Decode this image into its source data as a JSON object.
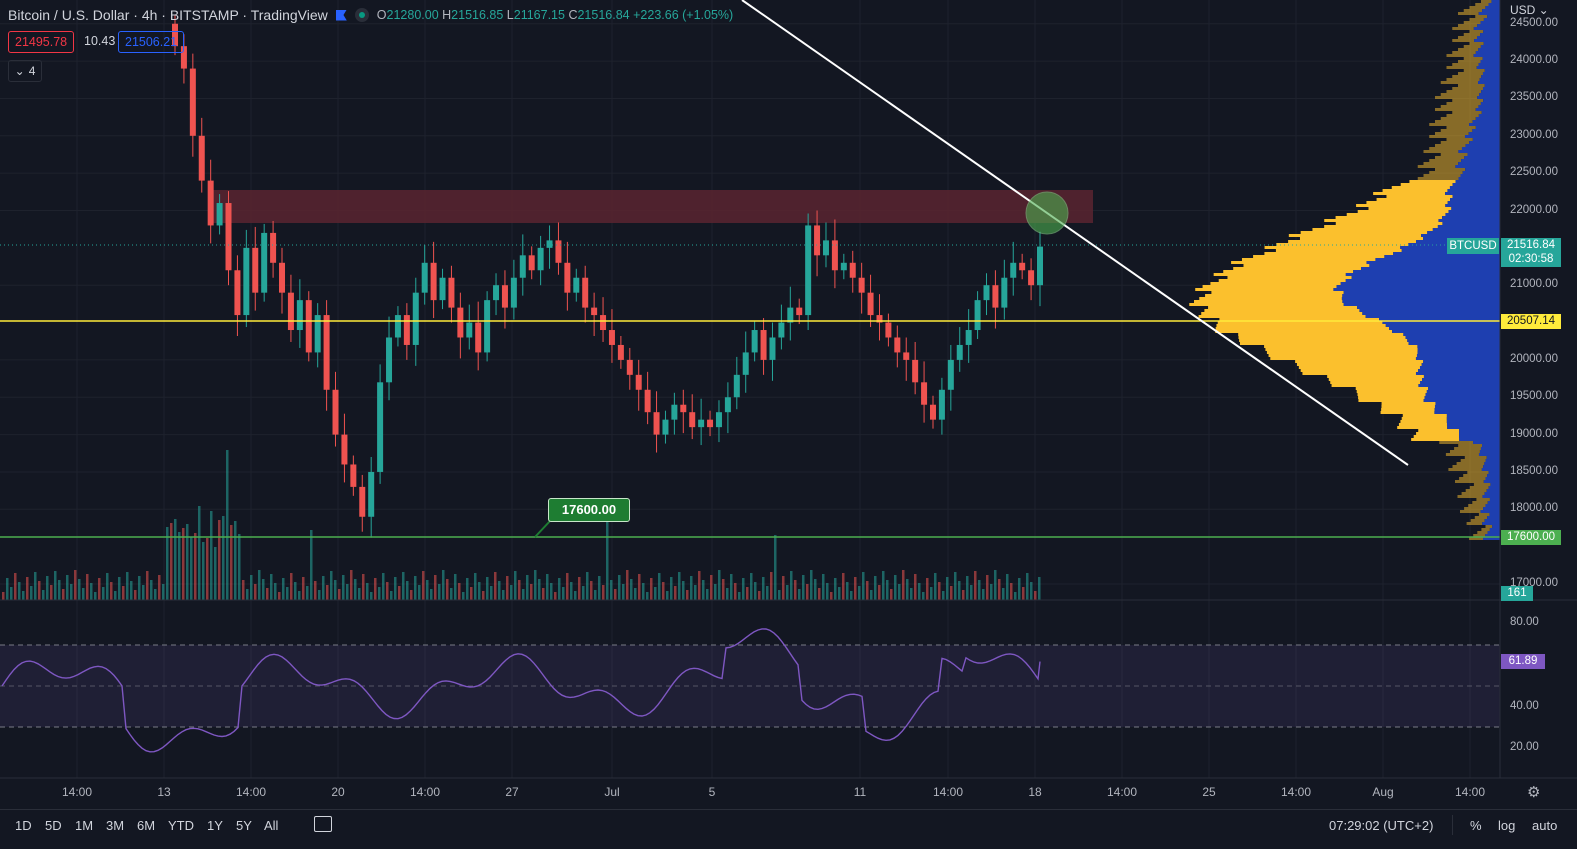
{
  "legend": {
    "title": "Bitcoin / U.S. Dollar · 4h · BITSTAMP · TradingView",
    "ohlc": {
      "o_label": "O",
      "o": "21280.00",
      "h_label": "H",
      "h": "21516.85",
      "l_label": "L",
      "l": "21167.15",
      "c_label": "C",
      "c": "21516.84",
      "change": "+223.66 (+1.05%)"
    },
    "sell": "21495.78",
    "spread": "10.43",
    "buy": "21506.21",
    "indicators_count": "4",
    "collapse_icon": "chevron-down-icon"
  },
  "price_axis": {
    "currency": "USD",
    "labels": [
      "24500.00",
      "24000.00",
      "23500.00",
      "23000.00",
      "22500.00",
      "22000.00",
      "21000.00",
      "20000.00",
      "19500.00",
      "19000.00",
      "18500.00",
      "18000.00",
      "17000.00"
    ],
    "symbol_tag": "BTCUSD",
    "last_price": "21516.84",
    "countdown": "02:30:58",
    "hline_price": "20507.14",
    "support_price": "17600.00",
    "volume_tag": "161",
    "rsi_labels": [
      "80.00",
      "40.00",
      "20.00"
    ],
    "rsi_value": "61.89"
  },
  "support_label": "17600.00",
  "time_axis": [
    "14:00",
    "13",
    "14:00",
    "20",
    "14:00",
    "27",
    "Jul",
    "5",
    "11",
    "14:00",
    "18",
    "14:00",
    "25",
    "14:00",
    "Aug",
    "14:00"
  ],
  "bottom_bar": {
    "ranges": [
      "1D",
      "5D",
      "1M",
      "3M",
      "6M",
      "YTD",
      "1Y",
      "5Y",
      "All"
    ],
    "clock": "07:29:02 (UTC+2)",
    "percent": "%",
    "log": "log",
    "auto": "auto"
  },
  "colors": {
    "up": "#26a69a",
    "down": "#ef5350",
    "resistance_zone": "#5a2430",
    "hline": "#ffeb3b",
    "support": "#4caf50",
    "rsi": "#7e57c2",
    "vp_up": "#fbc02d",
    "vp_down": "#1e3fb0"
  },
  "chart_data": {
    "type": "candlestick",
    "symbol": "BTCUSD",
    "interval": "4h",
    "ylim": [
      16800,
      24600
    ],
    "closes": [
      24200,
      23900,
      23000,
      22400,
      21800,
      22100,
      21200,
      20600,
      21500,
      20900,
      21700,
      21300,
      20900,
      20400,
      20800,
      20100,
      20600,
      19600,
      19000,
      18600,
      18300,
      17900,
      18500,
      19700,
      20300,
      20600,
      20200,
      20900,
      21300,
      20800,
      21100,
      20700,
      20300,
      20500,
      20100,
      20800,
      21000,
      20700,
      21100,
      21400,
      21200,
      21500,
      21600,
      21300,
      20900,
      21100,
      20700,
      20600,
      20400,
      20200,
      20000,
      19800,
      19600,
      19300,
      19000,
      19200,
      19400,
      19300,
      19100,
      19200,
      19100,
      19300,
      19500,
      19800,
      20100,
      20400,
      20000,
      20300,
      20500,
      20700,
      20600,
      21800,
      21400,
      21600,
      21200,
      21300,
      21100,
      20900,
      20600,
      20500,
      20300,
      20100,
      20000,
      19700,
      19400,
      19200,
      19600,
      20000,
      20200,
      20400,
      20800,
      21000,
      20700,
      21100,
      21300,
      21200,
      21000,
      21517
    ],
    "rsi_levels": [
      70,
      50,
      30
    ],
    "rsi_last": 61.89
  }
}
